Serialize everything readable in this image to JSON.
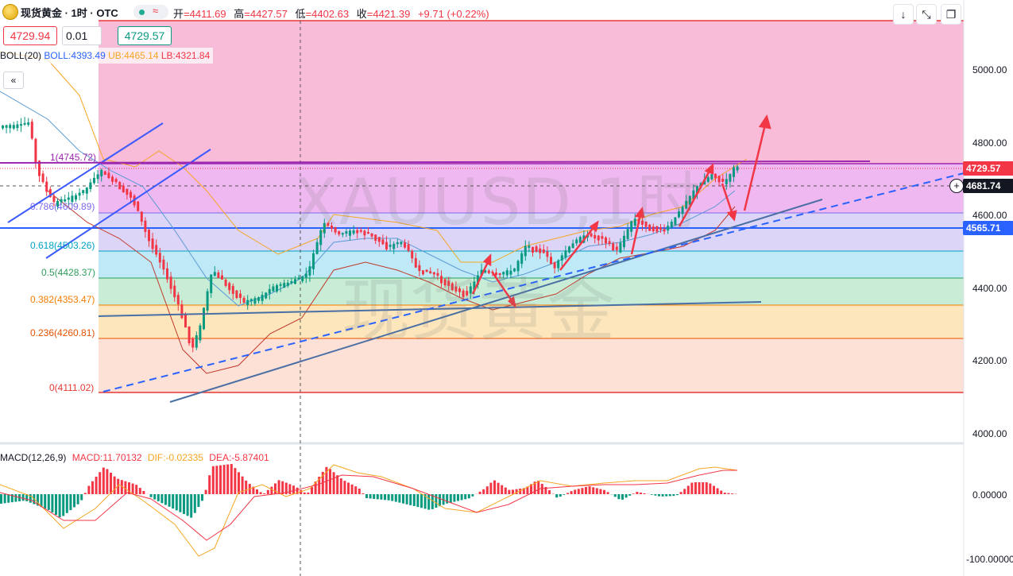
{
  "header": {
    "symbol_title": "现货黄金 · 1时 · OTC",
    "approx_icon": "≈",
    "ohlc": [
      {
        "key": "开",
        "value": "=4411.69"
      },
      {
        "key": "高",
        "value": "=4427.57"
      },
      {
        "key": "低",
        "value": "=4402.63"
      },
      {
        "key": "收",
        "value": "=4421.39"
      }
    ],
    "change": "+9.71 (+0.22%)"
  },
  "trade": {
    "sell_price": "4729.94",
    "quantity": "0.01",
    "buy_price": "4729.57"
  },
  "indicators": {
    "boll": {
      "name": "BOLL(20)",
      "basis": "BOLL:4393.49",
      "upper": "UB:4465.14",
      "lower": "LB:4321.84"
    },
    "macd": {
      "name": "MACD(12,26,9)",
      "macd": "MACD:11.70132",
      "dif": "DIF:-0.02335",
      "dea": "DEA:-5.87401"
    }
  },
  "toolbar": {
    "icons": [
      "arrow-down-icon",
      "collapse-arrows-icon",
      "restore-window-icon"
    ],
    "collapse_glyph": "«"
  },
  "watermark": {
    "line1": "XAUUSD,1时",
    "line2": "现货黄金"
  },
  "price_axis": {
    "labels": [
      "5000.00",
      "4800.00",
      "4600.00",
      "4400.00",
      "4200.00",
      "4000.00"
    ],
    "tags": [
      {
        "text": "4729.57",
        "color": "#f23645"
      },
      {
        "text": "4681.74",
        "color": "#131722"
      },
      {
        "text": "4565.71",
        "color": "#2962ff"
      }
    ]
  },
  "macd_axis": {
    "labels": [
      "0.00000",
      "-100.00000"
    ]
  },
  "fib_levels": [
    {
      "label": "1(4745.72)",
      "color": "#9c27b0"
    },
    {
      "label": "0.786(4609.89)",
      "color": "#7b68ee"
    },
    {
      "label": "0.618(4503.26)",
      "color": "#00a2c7"
    },
    {
      "label": "0.5(4428.37)",
      "color": "#2e9e5b"
    },
    {
      "label": "0.382(4353.47)",
      "color": "#f57c00"
    },
    {
      "label": "0.236(4260.81)",
      "color": "#e65100"
    },
    {
      "label": "0(4111.02)",
      "color": "#e53935"
    }
  ],
  "colors": {
    "up": "#089981",
    "down": "#f23645",
    "trend": "#2962ff",
    "fib_top": "#f8bbd9"
  }
}
